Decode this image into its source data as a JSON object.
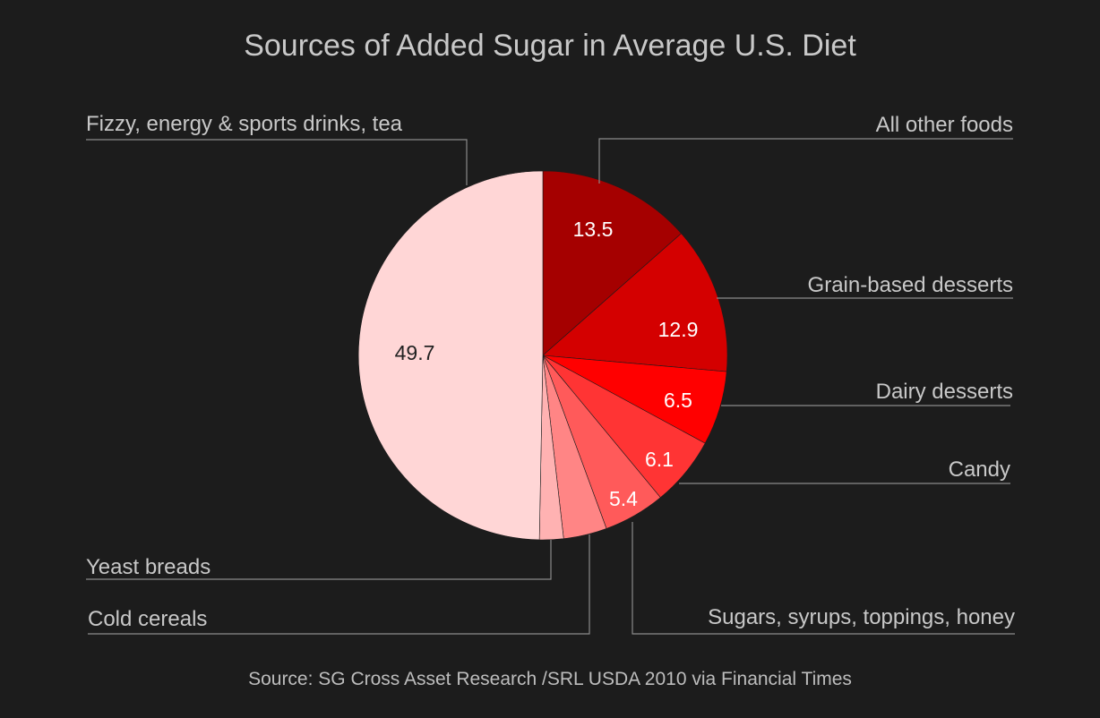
{
  "chart_data": {
    "type": "pie",
    "title": "Sources of Added Sugar in Average U.S. Diet",
    "source": "Source: SG Cross Asset Research /SRL USDA 2010 via Financial Times",
    "start_angle_deg": 0,
    "direction": "clockwise",
    "legend": "none",
    "slices": [
      {
        "label": "All other foods",
        "value": 13.5,
        "value_label": "13.5",
        "color": "#a50000",
        "text_color": "#ffffff"
      },
      {
        "label": "Grain-based desserts",
        "value": 12.9,
        "value_label": "12.9",
        "color": "#d40000",
        "text_color": "#ffffff"
      },
      {
        "label": "Dairy desserts",
        "value": 6.5,
        "value_label": "6.5",
        "color": "#ff0000",
        "text_color": "#ffffff"
      },
      {
        "label": "Candy",
        "value": 6.1,
        "value_label": "6.1",
        "color": "#ff3434",
        "text_color": "#ffffff"
      },
      {
        "label": "Sugars, syrups, toppings, honey",
        "value": 5.4,
        "value_label": "5.4",
        "color": "#ff5a5a",
        "text_color": "#ffffff"
      },
      {
        "label": "Cold cereals",
        "value": 3.8,
        "value_label": "",
        "color": "#ff8585",
        "text_color": "#ffffff"
      },
      {
        "label": "Yeast breads",
        "value": 2.1,
        "value_label": "",
        "color": "#ffb2b2",
        "text_color": "#ffffff"
      },
      {
        "label": "Fizzy, energy & sports drinks, tea",
        "value": 49.7,
        "value_label": "49.7",
        "color": "#ffd6d6",
        "text_color": "#222222"
      }
    ]
  }
}
